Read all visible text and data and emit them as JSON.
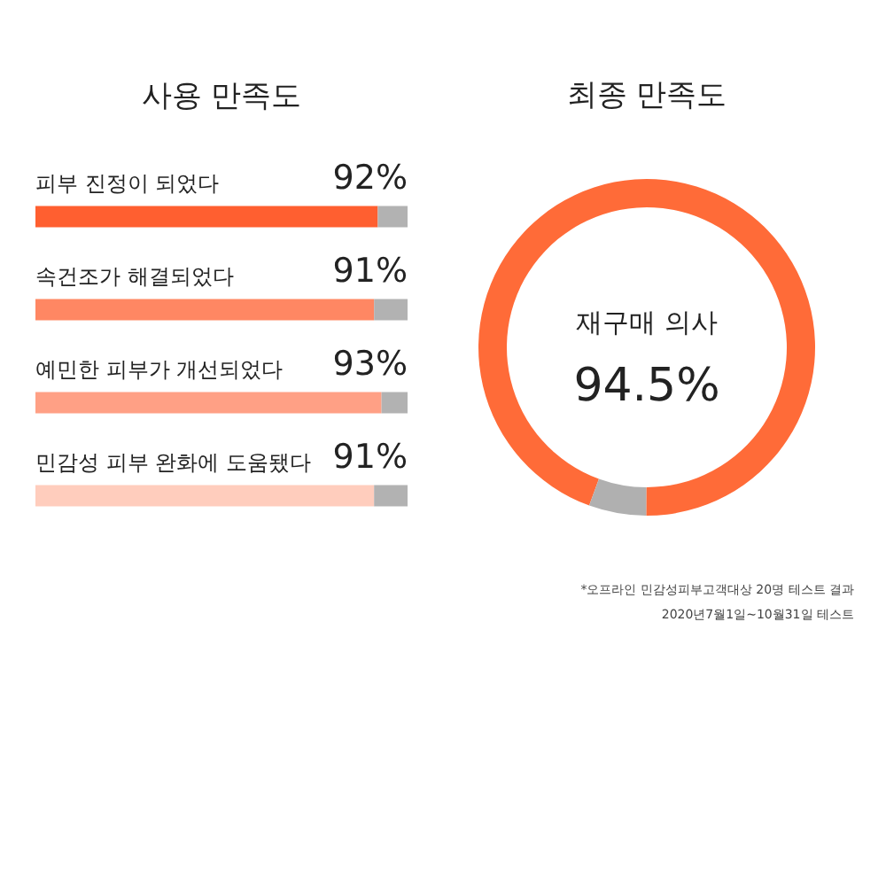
{
  "chart_data": [
    {
      "type": "bar",
      "title": "사용 만족도",
      "orientation": "horizontal",
      "stacked": true,
      "xlim": [
        0,
        100
      ],
      "tick_labels": false,
      "categories": [
        "피부 진정이 되었다",
        "속건조가 해결되었다",
        "예민한 피부가 개선되었다",
        "민감성 피부 완화에 도움됐다"
      ],
      "series": [
        {
          "values": [
            92,
            91,
            93,
            91
          ],
          "colors": [
            "#ff5f30",
            "#ff8763",
            "#ffa085",
            "#ffcdbd"
          ],
          "value_labels": [
            "92%",
            "91%",
            "93%",
            "91%"
          ]
        },
        {
          "values": [
            8,
            9,
            7,
            9
          ],
          "color": "#b2b2b2"
        }
      ]
    },
    {
      "type": "donut",
      "title": "최종 만족도",
      "categories": [
        "재구매 의사",
        null
      ],
      "values": [
        94.5,
        5.5
      ],
      "colors": [
        "#ff6b38",
        "#b0b0b0"
      ],
      "value_labels": [
        "94.5%",
        null
      ],
      "annotations": [
        "*오프라인 민감성피부고객대상 20명 테스트 결과",
        "2020년7월1일~10월31일 테스트"
      ]
    }
  ]
}
